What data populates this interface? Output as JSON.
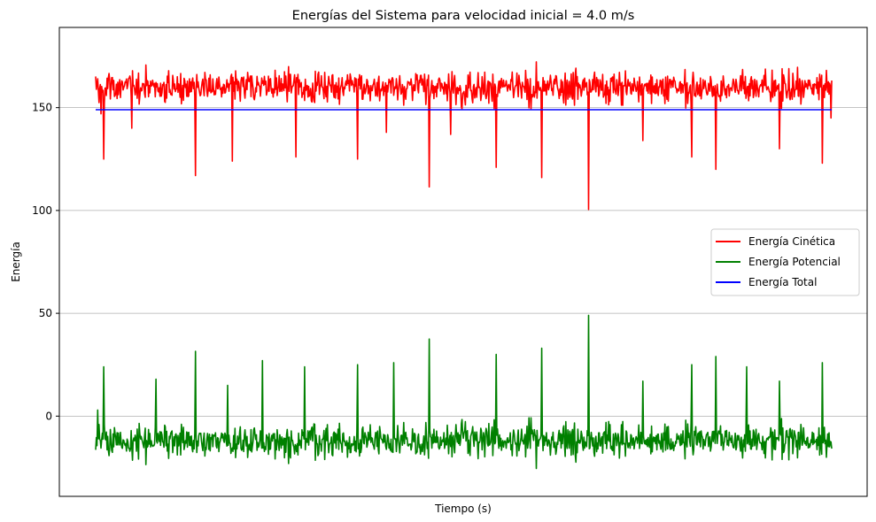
{
  "chart_data": {
    "type": "line",
    "title": "Energías del Sistema para velocidad inicial = 4.0 m/s",
    "xlabel": "Tiempo (s)",
    "ylabel": "Energía",
    "ylim": [
      -39,
      189
    ],
    "xlim": [
      0,
      1
    ],
    "y_ticks": [
      0,
      50,
      100,
      150
    ],
    "x_ticks": [],
    "grid": "horizontal",
    "legend_position": "center-right",
    "series": [
      {
        "name": "Energía Cinética",
        "color": "#ff0000",
        "mean": 160,
        "spread": 5.5,
        "upper_peak": 178,
        "n_points": 1100,
        "dips": [
          [
            0.007,
            147
          ],
          [
            0.011,
            125
          ],
          [
            0.049,
            140
          ],
          [
            0.136,
            117
          ],
          [
            0.186,
            124
          ],
          [
            0.272,
            126
          ],
          [
            0.356,
            125
          ],
          [
            0.395,
            138
          ],
          [
            0.453,
            111.5
          ],
          [
            0.482,
            137
          ],
          [
            0.544,
            121
          ],
          [
            0.606,
            116
          ],
          [
            0.67,
            100.5
          ],
          [
            0.743,
            134
          ],
          [
            0.81,
            126
          ],
          [
            0.843,
            120
          ],
          [
            0.929,
            130
          ],
          [
            0.987,
            123
          ],
          [
            0.999,
            145
          ]
        ]
      },
      {
        "name": "Energía Potencial",
        "color": "#008000",
        "mean": -12,
        "spread": 5.5,
        "lower_trough": -29,
        "n_points": 1100,
        "spikes": [
          [
            0.003,
            3
          ],
          [
            0.011,
            24
          ],
          [
            0.082,
            18
          ],
          [
            0.136,
            31.5
          ],
          [
            0.179,
            15
          ],
          [
            0.227,
            27
          ],
          [
            0.284,
            24
          ],
          [
            0.356,
            25
          ],
          [
            0.405,
            26
          ],
          [
            0.453,
            37.5
          ],
          [
            0.544,
            30
          ],
          [
            0.606,
            33
          ],
          [
            0.67,
            49
          ],
          [
            0.743,
            17
          ],
          [
            0.81,
            25
          ],
          [
            0.843,
            29
          ],
          [
            0.884,
            24
          ],
          [
            0.929,
            17
          ],
          [
            0.987,
            26
          ]
        ]
      },
      {
        "name": "Energía Total",
        "color": "#0000ff",
        "values": [
          149,
          149
        ]
      }
    ]
  }
}
